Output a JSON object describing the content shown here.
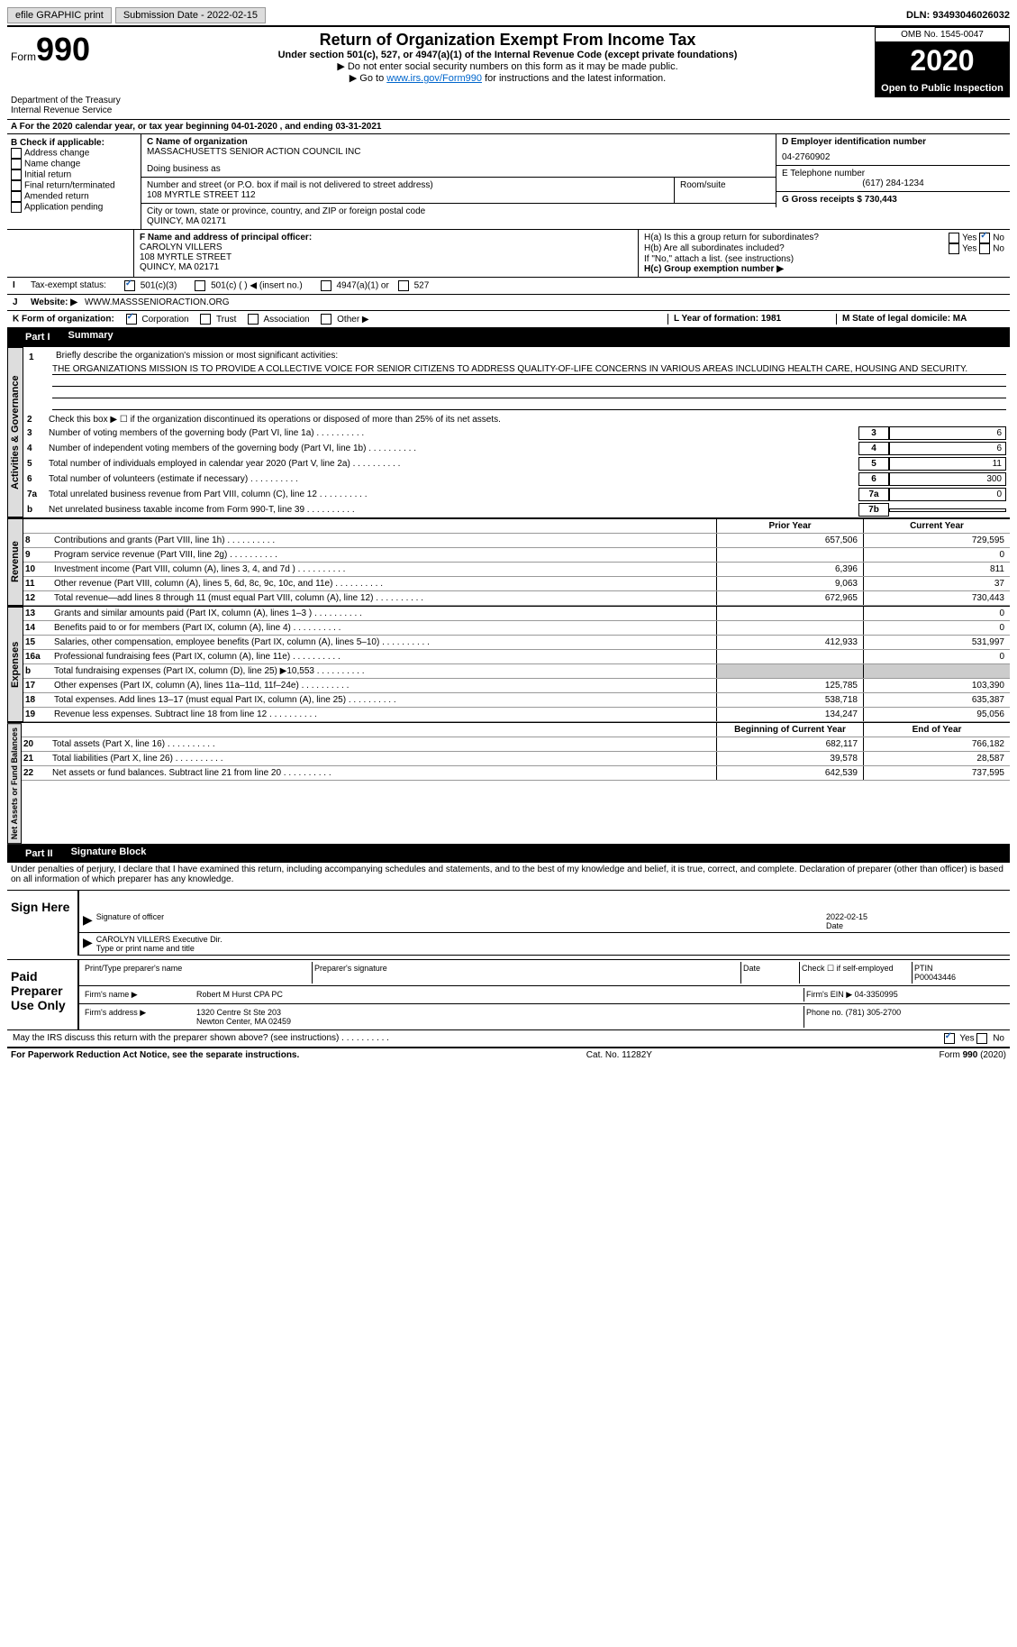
{
  "topbar": {
    "efile": "efile GRAPHIC print",
    "submission_label": "Submission Date - 2022-02-15",
    "dln_label": "DLN: 93493046026032"
  },
  "header": {
    "form_label": "Form",
    "form_num": "990",
    "dept": "Department of the Treasury\nInternal Revenue Service",
    "title": "Return of Organization Exempt From Income Tax",
    "subtitle": "Under section 501(c), 527, or 4947(a)(1) of the Internal Revenue Code (except private foundations)",
    "note1": "▶ Do not enter social security numbers on this form as it may be made public.",
    "note2_pre": "▶ Go to ",
    "note2_link": "www.irs.gov/Form990",
    "note2_post": " for instructions and the latest information.",
    "omb": "OMB No. 1545-0047",
    "year": "2020",
    "open": "Open to Public Inspection"
  },
  "line_a": "For the 2020 calendar year, or tax year beginning 04-01-2020   , and ending 03-31-2021",
  "box_b": {
    "label": "B Check if applicable:",
    "items": [
      "Address change",
      "Name change",
      "Initial return",
      "Final return/terminated",
      "Amended return",
      "Application pending"
    ]
  },
  "box_c": {
    "name_label": "C Name of organization",
    "name": "MASSACHUSETTS SENIOR ACTION COUNCIL INC",
    "dba_label": "Doing business as",
    "addr_label": "Number and street (or P.O. box if mail is not delivered to street address)",
    "addr": "108 MYRTLE STREET 112",
    "room_label": "Room/suite",
    "city_label": "City or town, state or province, country, and ZIP or foreign postal code",
    "city": "QUINCY, MA  02171"
  },
  "box_d": {
    "label": "D Employer identification number",
    "value": "04-2760902"
  },
  "box_e": {
    "label": "E Telephone number",
    "value": "(617) 284-1234"
  },
  "box_g": {
    "label": "G Gross receipts $ 730,443"
  },
  "box_f": {
    "label": "F Name and address of principal officer:",
    "name": "CAROLYN VILLERS",
    "addr1": "108 MYRTLE STREET",
    "addr2": "QUINCY, MA  02171"
  },
  "box_h": {
    "ha_label": "H(a)  Is this a group return for subordinates?",
    "hb_label": "H(b)  Are all subordinates included?",
    "hb_note": "If \"No,\" attach a list. (see instructions)",
    "hc_label": "H(c)  Group exemption number ▶",
    "yes": "Yes",
    "no": "No"
  },
  "line_i": {
    "label": "Tax-exempt status:",
    "opts": [
      "501(c)(3)",
      "501(c) (  ) ◀ (insert no.)",
      "4947(a)(1) or",
      "527"
    ]
  },
  "line_j": {
    "label": "Website: ▶",
    "value": "WWW.MASSSENIORACTION.ORG"
  },
  "line_k": {
    "label": "K Form of organization:",
    "opts": [
      "Corporation",
      "Trust",
      "Association",
      "Other ▶"
    ]
  },
  "line_l": {
    "label": "L Year of formation: 1981"
  },
  "line_m": {
    "label": "M State of legal domicile: MA"
  },
  "part1": {
    "label": "Part I",
    "title": "Summary",
    "q1_label": "Briefly describe the organization's mission or most significant activities:",
    "q1_text": "THE ORGANIZATIONS MISSION IS TO PROVIDE A COLLECTIVE VOICE FOR SENIOR CITIZENS TO ADDRESS QUALITY-OF-LIFE CONCERNS IN VARIOUS AREAS INCLUDING HEALTH CARE, HOUSING AND SECURITY.",
    "q2": "Check this box ▶ ☐ if the organization discontinued its operations or disposed of more than 25% of its net assets.",
    "lines": [
      {
        "n": "3",
        "d": "Number of voting members of the governing body (Part VI, line 1a)",
        "b": "3",
        "v": "6"
      },
      {
        "n": "4",
        "d": "Number of independent voting members of the governing body (Part VI, line 1b)",
        "b": "4",
        "v": "6"
      },
      {
        "n": "5",
        "d": "Total number of individuals employed in calendar year 2020 (Part V, line 2a)",
        "b": "5",
        "v": "11"
      },
      {
        "n": "6",
        "d": "Total number of volunteers (estimate if necessary)",
        "b": "6",
        "v": "300"
      },
      {
        "n": "7a",
        "d": "Total unrelated business revenue from Part VIII, column (C), line 12",
        "b": "7a",
        "v": "0"
      },
      {
        "n": "b",
        "d": "Net unrelated business taxable income from Form 990-T, line 39",
        "b": "7b",
        "v": ""
      }
    ],
    "col_prior": "Prior Year",
    "col_curr": "Current Year",
    "revenue": [
      {
        "n": "8",
        "d": "Contributions and grants (Part VIII, line 1h)",
        "p": "657,506",
        "c": "729,595"
      },
      {
        "n": "9",
        "d": "Program service revenue (Part VIII, line 2g)",
        "p": "",
        "c": "0"
      },
      {
        "n": "10",
        "d": "Investment income (Part VIII, column (A), lines 3, 4, and 7d )",
        "p": "6,396",
        "c": "811"
      },
      {
        "n": "11",
        "d": "Other revenue (Part VIII, column (A), lines 5, 6d, 8c, 9c, 10c, and 11e)",
        "p": "9,063",
        "c": "37"
      },
      {
        "n": "12",
        "d": "Total revenue—add lines 8 through 11 (must equal Part VIII, column (A), line 12)",
        "p": "672,965",
        "c": "730,443"
      }
    ],
    "expenses": [
      {
        "n": "13",
        "d": "Grants and similar amounts paid (Part IX, column (A), lines 1–3 )",
        "p": "",
        "c": "0"
      },
      {
        "n": "14",
        "d": "Benefits paid to or for members (Part IX, column (A), line 4)",
        "p": "",
        "c": "0"
      },
      {
        "n": "15",
        "d": "Salaries, other compensation, employee benefits (Part IX, column (A), lines 5–10)",
        "p": "412,933",
        "c": "531,997"
      },
      {
        "n": "16a",
        "d": "Professional fundraising fees (Part IX, column (A), line 11e)",
        "p": "",
        "c": "0"
      },
      {
        "n": "b",
        "d": "Total fundraising expenses (Part IX, column (D), line 25) ▶10,553",
        "p": "shaded",
        "c": "shaded"
      },
      {
        "n": "17",
        "d": "Other expenses (Part IX, column (A), lines 11a–11d, 11f–24e)",
        "p": "125,785",
        "c": "103,390"
      },
      {
        "n": "18",
        "d": "Total expenses. Add lines 13–17 (must equal Part IX, column (A), line 25)",
        "p": "538,718",
        "c": "635,387"
      },
      {
        "n": "19",
        "d": "Revenue less expenses. Subtract line 18 from line 12",
        "p": "134,247",
        "c": "95,056"
      }
    ],
    "col_begin": "Beginning of Current Year",
    "col_end": "End of Year",
    "netassets": [
      {
        "n": "20",
        "d": "Total assets (Part X, line 16)",
        "p": "682,117",
        "c": "766,182"
      },
      {
        "n": "21",
        "d": "Total liabilities (Part X, line 26)",
        "p": "39,578",
        "c": "28,587"
      },
      {
        "n": "22",
        "d": "Net assets or fund balances. Subtract line 21 from line 20",
        "p": "642,539",
        "c": "737,595"
      }
    ],
    "vlabels": {
      "gov": "Activities & Governance",
      "rev": "Revenue",
      "exp": "Expenses",
      "net": "Net Assets or Fund Balances"
    }
  },
  "part2": {
    "label": "Part II",
    "title": "Signature Block",
    "penalty": "Under penalties of perjury, I declare that I have examined this return, including accompanying schedules and statements, and to the best of my knowledge and belief, it is true, correct, and complete. Declaration of preparer (other than officer) is based on all information of which preparer has any knowledge.",
    "sign_here": "Sign Here",
    "sig_officer": "Signature of officer",
    "sig_date": "2022-02-15",
    "date_label": "Date",
    "officer_name": "CAROLYN VILLERS Executive Dir.",
    "type_name": "Type or print name and title",
    "paid_prep": "Paid Preparer Use Only",
    "prep_name_label": "Print/Type preparer's name",
    "prep_sig_label": "Preparer's signature",
    "check_self": "Check ☐ if self-employed",
    "ptin_label": "PTIN",
    "ptin": "P00043446",
    "firm_name_label": "Firm's name    ▶",
    "firm_name": "Robert M Hurst CPA PC",
    "firm_ein_label": "Firm's EIN ▶",
    "firm_ein": "04-3350995",
    "firm_addr_label": "Firm's address ▶",
    "firm_addr": "1320 Centre St Ste 203",
    "firm_addr2": "Newton Center, MA  02459",
    "phone_label": "Phone no.",
    "phone": "(781) 305-2700",
    "discuss": "May the IRS discuss this return with the preparer shown above? (see instructions)",
    "yes": "Yes",
    "no": "No"
  },
  "footer": {
    "paperwork": "For Paperwork Reduction Act Notice, see the separate instructions.",
    "cat": "Cat. No. 11282Y",
    "form": "Form 990 (2020)"
  }
}
